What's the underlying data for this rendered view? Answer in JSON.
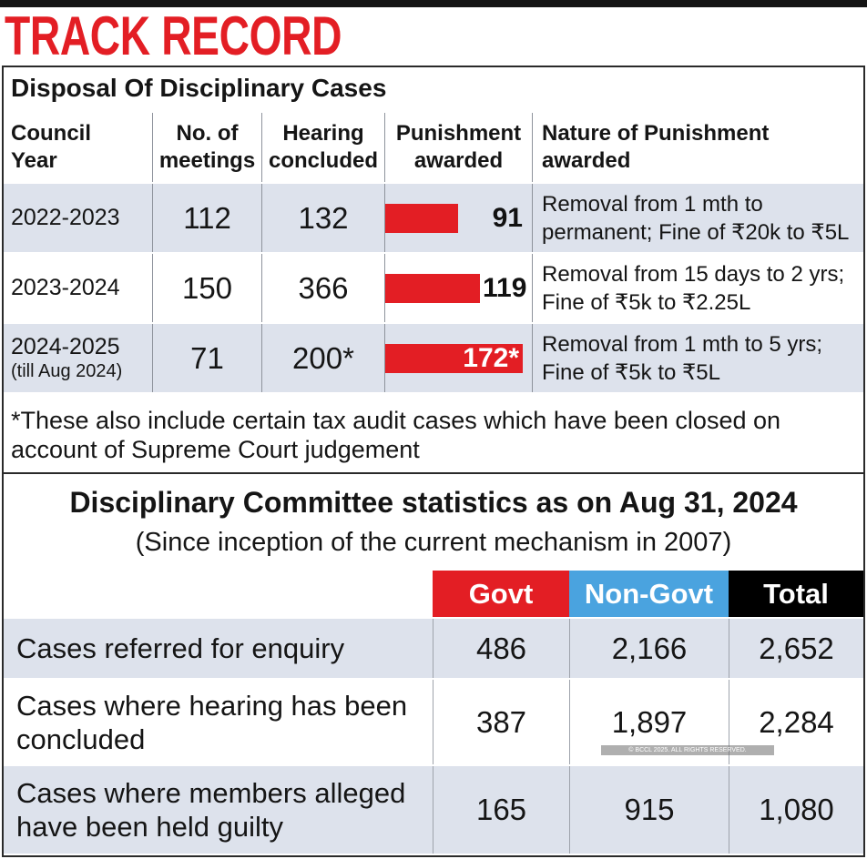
{
  "header": {
    "title": "TRACK RECORD"
  },
  "watermark": "© BCCL 2025. ALL RIGHTS RESERVED.",
  "colors": {
    "accent_red": "#e31e24",
    "govt": "#e31e24",
    "non_govt": "#4aa3df",
    "total": "#000000",
    "row_shade": "#dde2ec"
  },
  "chart_data": [
    {
      "type": "table",
      "title": "Disposal Of Disciplinary Cases",
      "columns": [
        "Council\nYear",
        "No. of\nmeetings",
        "Hearing\nconcluded",
        "Punishment\nawarded",
        "Nature of Punishment\nawarded"
      ],
      "rows": [
        {
          "year": "2022-2023",
          "meetings": "112",
          "hearings": "132",
          "punishment": 91,
          "punishment_label": "91",
          "nature": "Removal from 1 mth to\npermanent; Fine of ₹20k to ₹5L"
        },
        {
          "year": "2023-2024",
          "meetings": "150",
          "hearings": "366",
          "punishment": 119,
          "punishment_label": "119",
          "nature": "Removal from 15 days to 2 yrs;\nFine of ₹5k to ₹2.25L"
        },
        {
          "year": "2024-2025",
          "year_note": "(till Aug 2024)",
          "meetings": "71",
          "hearings": "200*",
          "punishment": 172,
          "punishment_label": "172*",
          "nature": "Removal from 1 mth to 5 yrs;\nFine of ₹5k to ₹5L"
        }
      ],
      "footnote": "*These also include certain tax audit cases which have been closed on\naccount of Supreme Court judgement"
    },
    {
      "type": "table",
      "title": "Disciplinary Committee statistics as on Aug 31, 2024",
      "subtitle": "(Since inception of the current mechanism in 2007)",
      "columns": [
        "Govt",
        "Non-Govt",
        "Total"
      ],
      "rows": [
        {
          "label": "Cases referred for enquiry",
          "govt": "486",
          "non_govt": "2,166",
          "total": "2,652"
        },
        {
          "label": "Cases where hearing has been\nconcluded",
          "govt": "387",
          "non_govt": "1,897",
          "total": "2,284"
        },
        {
          "label": "Cases where members alleged\nhave been held guilty",
          "govt": "165",
          "non_govt": "915",
          "total": "1,080"
        }
      ]
    }
  ]
}
